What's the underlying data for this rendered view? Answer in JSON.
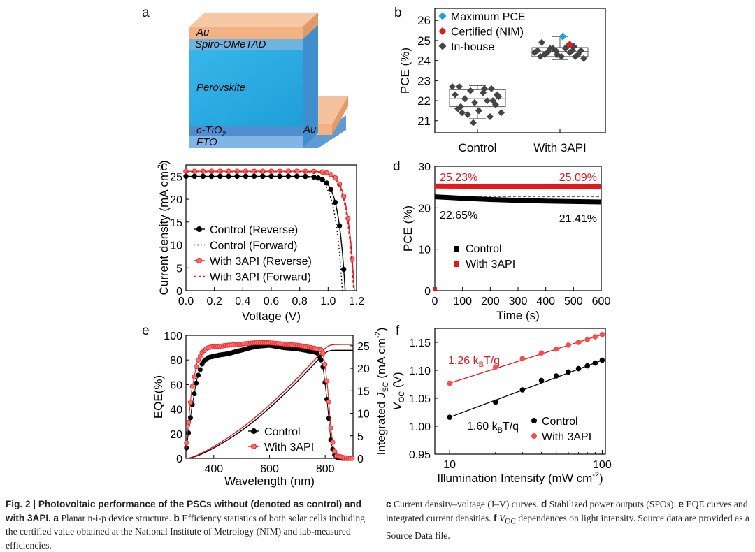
{
  "panels": {
    "a": {
      "label": "a",
      "layers": {
        "au_top": "Au",
        "spiro": "Spiro-OMeTAD",
        "perovskite": "Perovskite",
        "tio2_base": "c-TiO",
        "tio2_sub": "2",
        "fto": "FTO",
        "au_right": "Au"
      },
      "colors": {
        "au": "#f2b283",
        "perovskite": "#29abe2",
        "spiro": "#6fb3df",
        "tio2": "#4f8fcf",
        "fto": "#7fb6e6"
      }
    }
  },
  "chart_data": [
    {
      "panel": "b",
      "type": "scatter",
      "ylabel": "PCE (%)",
      "ylim": [
        20.4,
        26.6
      ],
      "yticks": [
        21,
        22,
        23,
        24,
        25,
        26
      ],
      "categories": [
        "Control",
        "With 3API"
      ],
      "legend": [
        {
          "name": "Maximum PCE",
          "color": "#1ca3d8",
          "marker": "diamond"
        },
        {
          "name": "Certified (NIM)",
          "color": "#e31a1c",
          "marker": "diamond"
        },
        {
          "name": "In-house",
          "color": "#454545",
          "marker": "diamond"
        }
      ],
      "boxes": [
        {
          "category": "Control",
          "q1": 21.7,
          "median": 22.1,
          "q3": 22.55,
          "whisker_low": 21.1,
          "whisker_high": 22.75
        },
        {
          "category": "With 3API",
          "q1": 24.2,
          "median": 24.45,
          "q3": 24.65,
          "whisker_low": 24.05,
          "whisker_high": 25.2
        }
      ],
      "series": [
        {
          "name": "Control",
          "values": [
            22.7,
            22.6,
            22.5,
            22.4,
            22.3,
            22.2,
            22.1,
            22.0,
            21.9,
            21.8,
            21.6,
            21.5,
            21.4,
            21.3,
            21.2,
            21.4,
            22.6,
            22.7,
            22.0,
            20.9,
            22.3,
            21.7
          ]
        },
        {
          "name": "With 3API",
          "values": [
            24.9,
            24.7,
            24.6,
            24.6,
            24.5,
            24.5,
            24.4,
            24.4,
            24.3,
            24.3,
            24.2,
            24.2,
            24.1,
            24.6,
            24.5,
            24.3,
            24.7,
            24.4,
            24.2,
            24.5
          ]
        },
        {
          "name": "Maximum PCE",
          "category": "With 3API",
          "value": 25.2
        },
        {
          "name": "Certified (NIM)",
          "category": "With 3API",
          "value": 24.8
        }
      ]
    },
    {
      "panel": "c",
      "type": "line",
      "xlabel": "Voltage (V)",
      "ylabel": "Current density (mA cm",
      "ylabel_sup": "-2",
      "ylabel_end": ")",
      "xlim": [
        0,
        1.2
      ],
      "ylim": [
        0,
        27.5
      ],
      "xticks": [
        0.0,
        0.2,
        0.4,
        0.6,
        0.8,
        1.0,
        1.2
      ],
      "xtick_labels": [
        "0.0",
        "0.2",
        "0.4",
        "0.6",
        "0.8",
        "1.0",
        "1.2"
      ],
      "yticks": [
        0,
        5,
        10,
        15,
        20,
        25
      ],
      "series": [
        {
          "name": "Control (Reverse)",
          "color": "#000000",
          "style": "solid-circle",
          "jsc": 25.0,
          "voc": 1.12,
          "knee": 0.9
        },
        {
          "name": "Control (Forward)",
          "color": "#000000",
          "style": "dotted",
          "jsc": 24.9,
          "voc": 1.1,
          "knee": 0.8
        },
        {
          "name": "With 3API (Reverse)",
          "color": "#e31a1c",
          "style": "solid-circle",
          "jsc": 26.1,
          "voc": 1.185,
          "knee": 1.0
        },
        {
          "name": "With 3API (Forward)",
          "color": "#e31a1c",
          "style": "dashed",
          "jsc": 26.0,
          "voc": 1.18,
          "knee": 0.93
        }
      ]
    },
    {
      "panel": "d",
      "type": "line",
      "xlabel": "Time (s)",
      "ylabel": "PCE (%)",
      "xlim": [
        0,
        600
      ],
      "ylim": [
        0,
        30
      ],
      "xticks": [
        0,
        100,
        200,
        300,
        400,
        500,
        600
      ],
      "yticks": [
        0,
        10,
        20,
        30
      ],
      "series": [
        {
          "name": "Control",
          "color": "#000000",
          "x": [
            0,
            100,
            200,
            300,
            400,
            500,
            600
          ],
          "y": [
            22.65,
            22.3,
            22.0,
            21.8,
            21.6,
            21.5,
            21.41
          ]
        },
        {
          "name": "With 3API",
          "color": "#e31a1c",
          "x": [
            0,
            100,
            200,
            300,
            400,
            500,
            600
          ],
          "y": [
            25.23,
            25.2,
            25.18,
            25.15,
            25.12,
            25.1,
            25.09
          ]
        }
      ],
      "reference_line": 22.65,
      "annotations": [
        "25.23%",
        "25.09%",
        "22.65%",
        "21.41%"
      ]
    },
    {
      "panel": "e",
      "type": "line",
      "xlabel": "Wavelength (nm)",
      "ylabel": "EQE(%)",
      "y2label_pre": "Integrated ",
      "y2label_j": "J",
      "y2label_sub": "SC",
      "y2label_unit": " (mA cm",
      "y2label_sup": "-2",
      "y2label_end": ")",
      "xlim": [
        300,
        900
      ],
      "ylim": [
        0,
        100
      ],
      "y2lim": [
        0,
        27.3
      ],
      "xticks": [
        400,
        600,
        800
      ],
      "yticks": [
        0,
        20,
        40,
        60,
        80,
        100
      ],
      "y2ticks": [
        0,
        5,
        10,
        15,
        20,
        25
      ],
      "series": [
        {
          "name": "Control",
          "color": "#000000",
          "eqe_x": [
            300,
            320,
            340,
            360,
            380,
            400,
            420,
            450,
            500,
            550,
            600,
            650,
            700,
            750,
            770,
            790,
            800,
            810,
            820,
            830,
            840,
            860,
            880,
            900
          ],
          "eqe_y": [
            5,
            40,
            65,
            78,
            82,
            83,
            84,
            85,
            88,
            91,
            92,
            90,
            89,
            87,
            86,
            78,
            60,
            40,
            15,
            4,
            1,
            0,
            0,
            0
          ],
          "jsc_final": 24.0
        },
        {
          "name": "With 3API",
          "color": "#e31a1c",
          "eqe_x": [
            300,
            320,
            340,
            360,
            380,
            400,
            420,
            450,
            500,
            550,
            600,
            650,
            700,
            750,
            770,
            790,
            800,
            810,
            820,
            830,
            840,
            860,
            880,
            900
          ],
          "eqe_y": [
            8,
            55,
            78,
            87,
            90,
            91,
            91,
            92,
            93,
            94,
            94,
            93,
            92,
            90,
            89,
            88,
            75,
            55,
            25,
            8,
            2,
            1,
            0,
            0
          ],
          "jsc_final": 25.3
        }
      ]
    },
    {
      "panel": "f",
      "type": "scatter",
      "xlabel": "Illumination Intensity (mW cm",
      "xlabel_sup": "-2",
      "xlabel_end": ")",
      "ylabel_v": "V",
      "ylabel_sub": "OC",
      "ylabel_unit": " (V)",
      "xscale": "log",
      "xlim": [
        8,
        105
      ],
      "ylim": [
        0.95,
        1.175
      ],
      "xticks": [
        10,
        100
      ],
      "yticks": [
        0.95,
        1.0,
        1.05,
        1.1,
        1.15
      ],
      "ytick_labels": [
        "0.95",
        "1.00",
        "1.05",
        "1.10",
        "1.15"
      ],
      "series": [
        {
          "name": "Control",
          "color": "#000000",
          "x": [
            10,
            20,
            30,
            40,
            50,
            60,
            70,
            80,
            90,
            100
          ],
          "y": [
            1.016,
            1.043,
            1.065,
            1.082,
            1.09,
            1.097,
            1.103,
            1.108,
            1.113,
            1.118
          ],
          "slope_label": "1.60 k",
          "slope_sub": "B",
          "slope_end": "T/q"
        },
        {
          "name": "With 3API",
          "color": "#e31a1c",
          "x": [
            10,
            20,
            30,
            40,
            50,
            60,
            70,
            80,
            90,
            100
          ],
          "y": [
            1.077,
            1.106,
            1.121,
            1.131,
            1.138,
            1.145,
            1.15,
            1.155,
            1.16,
            1.164
          ],
          "slope_label": "1.26 k",
          "slope_sub": "B",
          "slope_end": "T/q"
        }
      ]
    }
  ],
  "caption": {
    "fig": "Fig. 2",
    "sep": " | ",
    "title": "Photovoltaic performance of the PSCs without (denoted as control) and with 3API.",
    "a_lab": "a",
    "a_text": " Planar n-i-p device structure. ",
    "b_lab": "b",
    "b_text": " Efficiency statistics of both solar cells including the certified value obtained at the National Institute of Metrology (NIM) and lab-measured efficiencies. ",
    "c_lab": "c",
    "c_text": " Current density–voltage (J–V) curves. ",
    "d_lab": "d",
    "d_text": " Stabilized power outputs (SPOs). ",
    "e_lab": "e",
    "e_text": " EQE curves and integrated current densities. ",
    "f_lab": "f",
    "f_voc": " V",
    "f_sub": "OC",
    "f_text": " dependences on light intensity. Source data are provided as a Source Data file."
  }
}
